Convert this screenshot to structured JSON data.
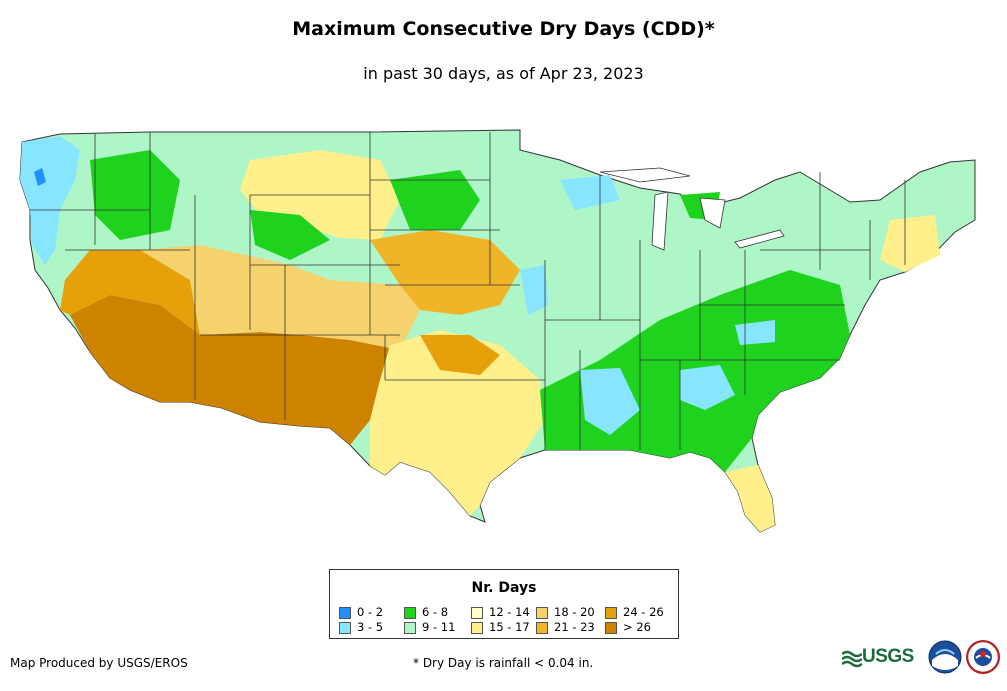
{
  "header": {
    "title": "Maximum Consecutive Dry Days (CDD)*",
    "subtitle": "in past 30 days, as of Apr 23, 2023"
  },
  "map": {
    "region": "Contiguous United States",
    "metric": "Maximum consecutive dry days"
  },
  "legend": {
    "title": "Nr. Days",
    "items": [
      {
        "label": "0 - 2",
        "color": "#1e90ff"
      },
      {
        "label": "3 - 5",
        "color": "#87e5ff"
      },
      {
        "label": "6 - 8",
        "color": "#1ed21e"
      },
      {
        "label": "9 - 11",
        "color": "#aef5c8"
      },
      {
        "label": "12 - 14",
        "color": "#ffffc8"
      },
      {
        "label": "15 - 17",
        "color": "#fff08c"
      },
      {
        "label": "18 - 20",
        "color": "#f5d26e"
      },
      {
        "label": "21 - 23",
        "color": "#f0b428"
      },
      {
        "label": "24 - 26",
        "color": "#e6a00a"
      },
      {
        "label": "> 26",
        "color": "#cd8200"
      }
    ]
  },
  "footer": {
    "credit": "Map Produced by USGS/EROS",
    "footnote": "* Dry Day is rainfall < 0.04 in.",
    "usgs_logo_text": "USGS"
  }
}
